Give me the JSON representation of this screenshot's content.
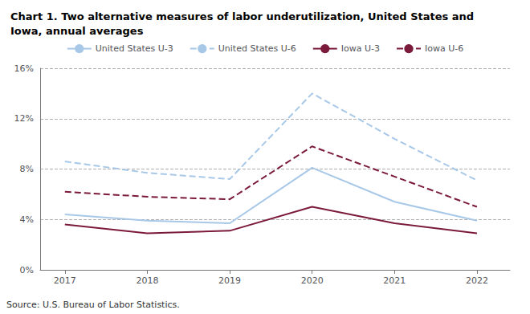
{
  "chart_data": {
    "type": "line",
    "title": "Chart 1. Two alternative measures of labor underutilization, United States and\nIowa, annual averages",
    "annotations": [
      "Source: U.S. Bureau of Labor Statistics."
    ],
    "x": [
      2017,
      2018,
      2019,
      2020,
      2021,
      2022
    ],
    "series": [
      {
        "name": "United States U-3",
        "color": "#a8c8e8",
        "line_style": "solid",
        "values": [
          4.4,
          3.9,
          3.7,
          8.1,
          5.4,
          3.9
        ]
      },
      {
        "name": "United States U-6",
        "color": "#a8c8e8",
        "line_style": "dashed",
        "values": [
          8.6,
          7.7,
          7.2,
          14.0,
          10.4,
          7.1
        ]
      },
      {
        "name": "Iowa U-3",
        "color": "#7b1a3a",
        "line_style": "solid",
        "values": [
          3.6,
          2.9,
          3.1,
          5.0,
          3.7,
          2.9
        ]
      },
      {
        "name": "Iowa U-6",
        "color": "#7b1a3a",
        "line_style": "dashed",
        "values": [
          6.2,
          5.8,
          5.6,
          9.8,
          7.4,
          5.0
        ]
      }
    ],
    "xlim": [
      2016.7,
      2022.4
    ],
    "xticks": [
      2017,
      2018,
      2019,
      2020,
      2021,
      2022
    ],
    "ylim": [
      0,
      16
    ],
    "yticks": [
      {
        "value": 0,
        "label": "0%"
      },
      {
        "value": 4,
        "label": "4%"
      },
      {
        "value": 8,
        "label": "8%"
      },
      {
        "value": 12,
        "label": "12%"
      },
      {
        "value": 16,
        "label": "16%"
      }
    ],
    "grid": true,
    "legend": "upper center"
  }
}
